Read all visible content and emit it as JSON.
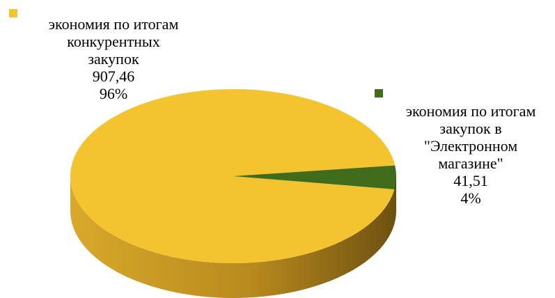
{
  "chart_data": {
    "type": "pie",
    "title": "",
    "slices": [
      {
        "label_lines": [
          "экономия по итогам",
          "конкурентных",
          "закупок"
        ],
        "value_text": "907,46",
        "percent_text": "96%",
        "value": 907.46,
        "color": "#F4C430"
      },
      {
        "label_lines": [
          "экономия по итогам",
          "закупок в",
          "\"Электронном",
          "магазине\""
        ],
        "value_text": "41,51",
        "percent_text": "4%",
        "value": 41.51,
        "color": "#3F6B1A"
      }
    ],
    "style": "3d",
    "legend": "none"
  }
}
